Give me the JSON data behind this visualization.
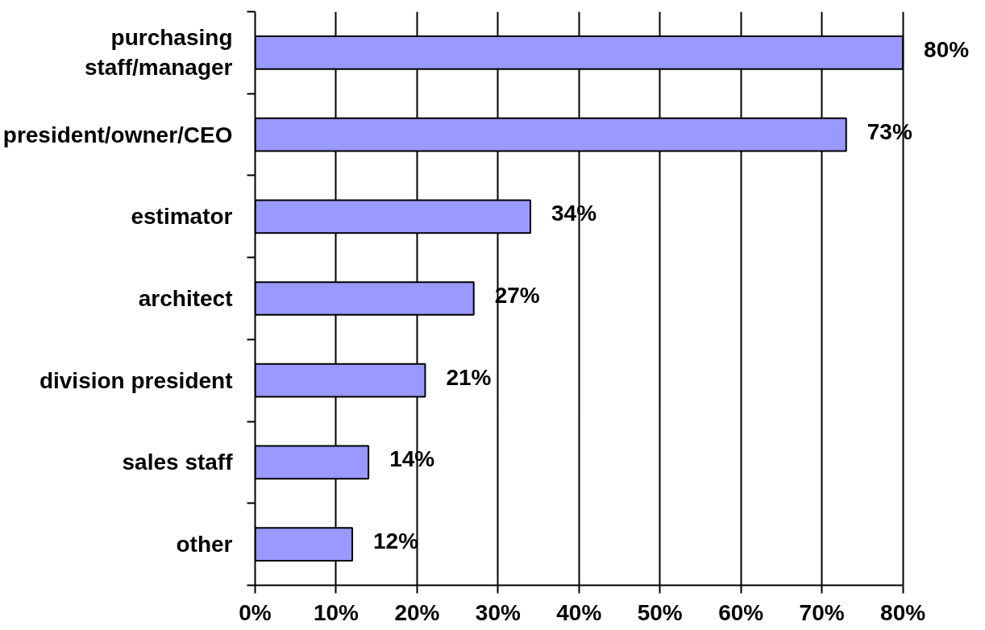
{
  "chart_data": {
    "type": "bar",
    "orientation": "horizontal",
    "categories": [
      "purchasing staff/manager",
      "president/owner/CEO",
      "estimator",
      "architect",
      "division president",
      "sales staff",
      "other"
    ],
    "values": [
      80,
      73,
      34,
      27,
      21,
      14,
      12
    ],
    "value_labels": [
      "80%",
      "73%",
      "34%",
      "27%",
      "21%",
      "14%",
      "12%"
    ],
    "color": "#9999ff",
    "xlim": [
      0,
      80
    ],
    "xticks": [
      {
        "value": 0,
        "label": "0%"
      },
      {
        "value": 10,
        "label": "10%"
      },
      {
        "value": 20,
        "label": "20%"
      },
      {
        "value": 30,
        "label": "30%"
      },
      {
        "value": 40,
        "label": "40%"
      },
      {
        "value": 50,
        "label": "50%"
      },
      {
        "value": 60,
        "label": "60%"
      },
      {
        "value": 70,
        "label": "70%"
      },
      {
        "value": 80,
        "label": "80%"
      }
    ],
    "grid": "x"
  }
}
